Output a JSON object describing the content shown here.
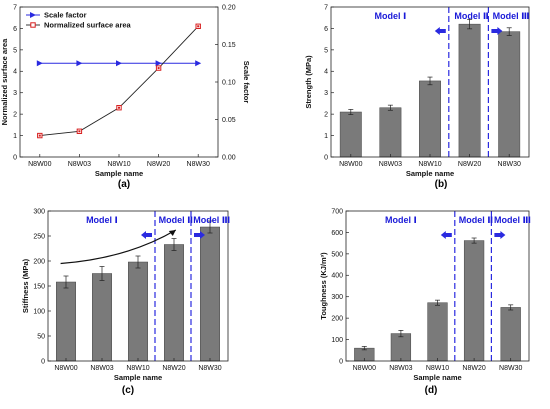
{
  "colors": {
    "bar": "#7a7a7a",
    "bar_edge": "#444444",
    "model_text": "#1a1ad8",
    "divider": "#2a2ae0",
    "scale_series": "#2a2ae0",
    "area_series": "#d81e1e",
    "area_line": "#222222",
    "trend_arrow": "#111111"
  },
  "panel_letters": [
    "(a)",
    "(b)",
    "(c)",
    "(d)"
  ],
  "chart_data": [
    {
      "panel": "(a)",
      "type": "line",
      "xlabel": "Sample name",
      "ylabel": "Normalized surface area",
      "ylabel_right": "Scale factor",
      "categories": [
        "N8W00",
        "N8W03",
        "N8W10",
        "N8W20",
        "N8W30"
      ],
      "ylim": [
        0,
        7
      ],
      "yticks": [
        0,
        1,
        2,
        3,
        4,
        5,
        6,
        7
      ],
      "ylim_right": [
        0.0,
        0.2
      ],
      "yticks_right": [
        "0.00",
        "0.05",
        "0.10",
        "0.15",
        "0.20"
      ],
      "legend_placement": "top-left",
      "series": [
        {
          "name": "Scale factor",
          "axis": "right",
          "marker": "triangle",
          "values": [
            0.125,
            0.125,
            0.125,
            0.125,
            0.125
          ]
        },
        {
          "name": "Normalized surface area",
          "axis": "left",
          "marker": "square",
          "values": [
            1.0,
            1.2,
            2.3,
            4.15,
            6.1
          ],
          "errors": [
            0.06,
            0.06,
            0.08,
            0.08,
            0.08
          ]
        }
      ]
    },
    {
      "panel": "(b)",
      "type": "bar",
      "xlabel": "Sample name",
      "ylabel": "Strength (MPa)",
      "categories": [
        "N8W00",
        "N8W03",
        "N8W10",
        "N8W20",
        "N8W30"
      ],
      "values": [
        2.1,
        2.3,
        3.55,
        6.2,
        5.85
      ],
      "errors": [
        0.12,
        0.12,
        0.18,
        0.22,
        0.18
      ],
      "ylim": [
        0,
        7
      ],
      "yticks": [
        0,
        1,
        2,
        3,
        4,
        5,
        6,
        7
      ],
      "models": [
        {
          "label": "Model  Ⅰ",
          "range": [
            0,
            2
          ]
        },
        {
          "label": "Model  Ⅱ",
          "range": [
            3,
            3
          ]
        },
        {
          "label": "Model Ⅲ",
          "range": [
            4,
            4
          ]
        }
      ]
    },
    {
      "panel": "(c)",
      "type": "bar",
      "xlabel": "Sample name",
      "ylabel": "Stiffness (MPa)",
      "categories": [
        "N8W00",
        "N8W03",
        "N8W10",
        "N8W20",
        "N8W30"
      ],
      "values": [
        158,
        175,
        198,
        233,
        268
      ],
      "errors": [
        12,
        14,
        12,
        12,
        12
      ],
      "ylim": [
        0,
        300
      ],
      "yticks": [
        0,
        50,
        100,
        150,
        200,
        250,
        300
      ],
      "models": [
        {
          "label": "Model  Ⅰ",
          "range": [
            0,
            2
          ]
        },
        {
          "label": "Model  Ⅱ",
          "range": [
            3,
            3
          ]
        },
        {
          "label": "Model Ⅲ",
          "range": [
            4,
            4
          ]
        }
      ],
      "trend_arrow": true
    },
    {
      "panel": "(d)",
      "type": "bar",
      "xlabel": "Sample name",
      "ylabel": "Toughness (KJ/m³)",
      "categories": [
        "N8W00",
        "N8W03",
        "N8W10",
        "N8W20",
        "N8W30"
      ],
      "values": [
        60,
        128,
        272,
        562,
        250
      ],
      "errors": [
        8,
        15,
        12,
        12,
        12
      ],
      "ylim": [
        0,
        700
      ],
      "yticks": [
        0,
        100,
        200,
        300,
        400,
        500,
        600,
        700
      ],
      "models": [
        {
          "label": "Model  Ⅰ",
          "range": [
            0,
            2
          ]
        },
        {
          "label": "Model  Ⅱ",
          "range": [
            3,
            3
          ]
        },
        {
          "label": "Model Ⅲ",
          "range": [
            4,
            4
          ]
        }
      ]
    }
  ]
}
